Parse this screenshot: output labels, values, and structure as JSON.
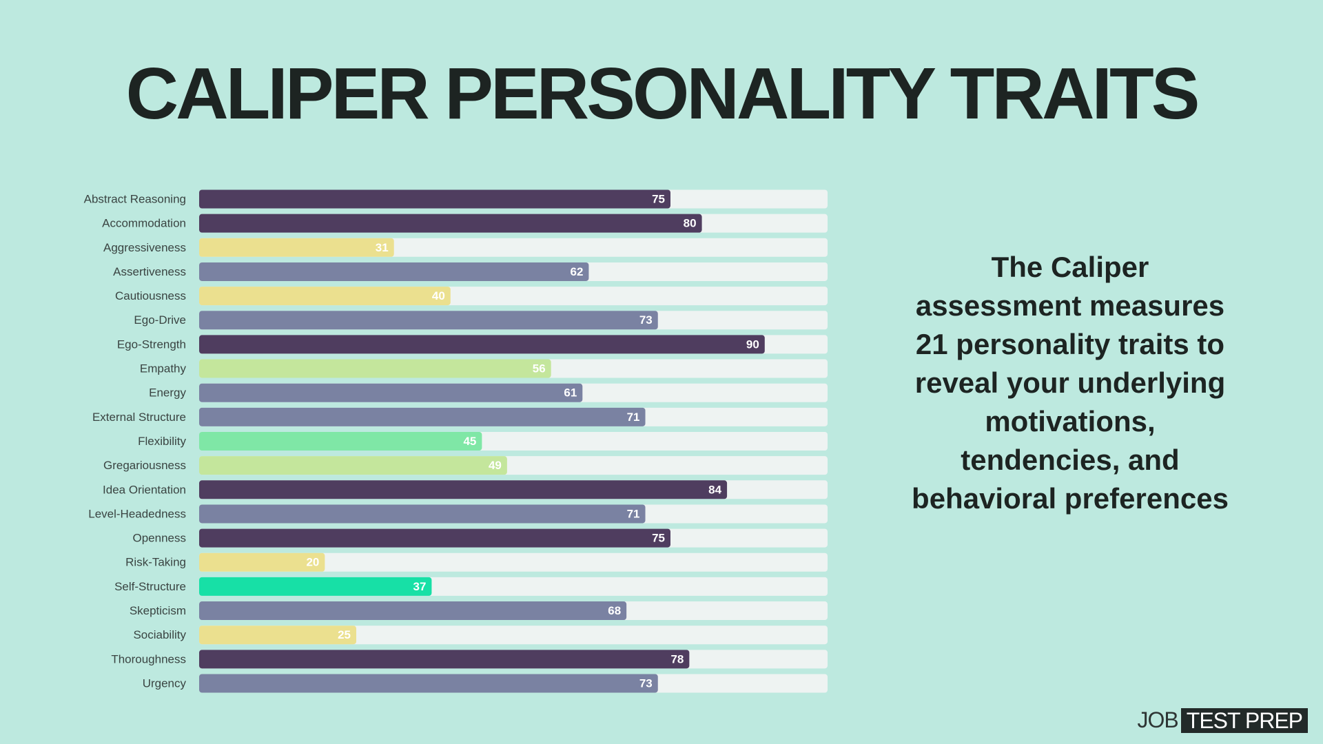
{
  "chart_data": {
    "type": "bar",
    "orientation": "horizontal",
    "title": "CALIPER PERSONALITY TRAITS",
    "categories": [
      "Abstract Reasoning",
      "Accommodation",
      "Aggressiveness",
      "Assertiveness",
      "Cautiousness",
      "Ego-Drive",
      "Ego-Strength",
      "Empathy",
      "Energy",
      "External Structure",
      "Flexibility",
      "Gregariousness",
      "Idea Orientation",
      "Level-Headedness",
      "Openness",
      "Risk-Taking",
      "Self-Structure",
      "Skepticism",
      "Sociability",
      "Thoroughness",
      "Urgency"
    ],
    "values": [
      75,
      80,
      31,
      62,
      40,
      73,
      90,
      56,
      61,
      71,
      45,
      49,
      84,
      71,
      75,
      20,
      37,
      68,
      25,
      78,
      73
    ],
    "colors": [
      "#4f3d5f",
      "#4f3d5f",
      "#ebe08f",
      "#7a82a2",
      "#ebe08f",
      "#7a82a2",
      "#4f3d5f",
      "#c4e69c",
      "#7a82a2",
      "#7a82a2",
      "#7fe7a6",
      "#c4e69c",
      "#4f3d5f",
      "#7a82a2",
      "#4f3d5f",
      "#ebe08f",
      "#17e0a6",
      "#7a82a2",
      "#ebe08f",
      "#4f3d5f",
      "#7a82a2"
    ],
    "track_color": "#eef3f2",
    "xlim": [
      0,
      100
    ]
  },
  "description": "The Caliper assessment measures 21 personality traits to reveal your underlying motivations, tendencies, and behavioral preferences",
  "logo": {
    "left": "JOB",
    "right": "TEST PREP"
  }
}
